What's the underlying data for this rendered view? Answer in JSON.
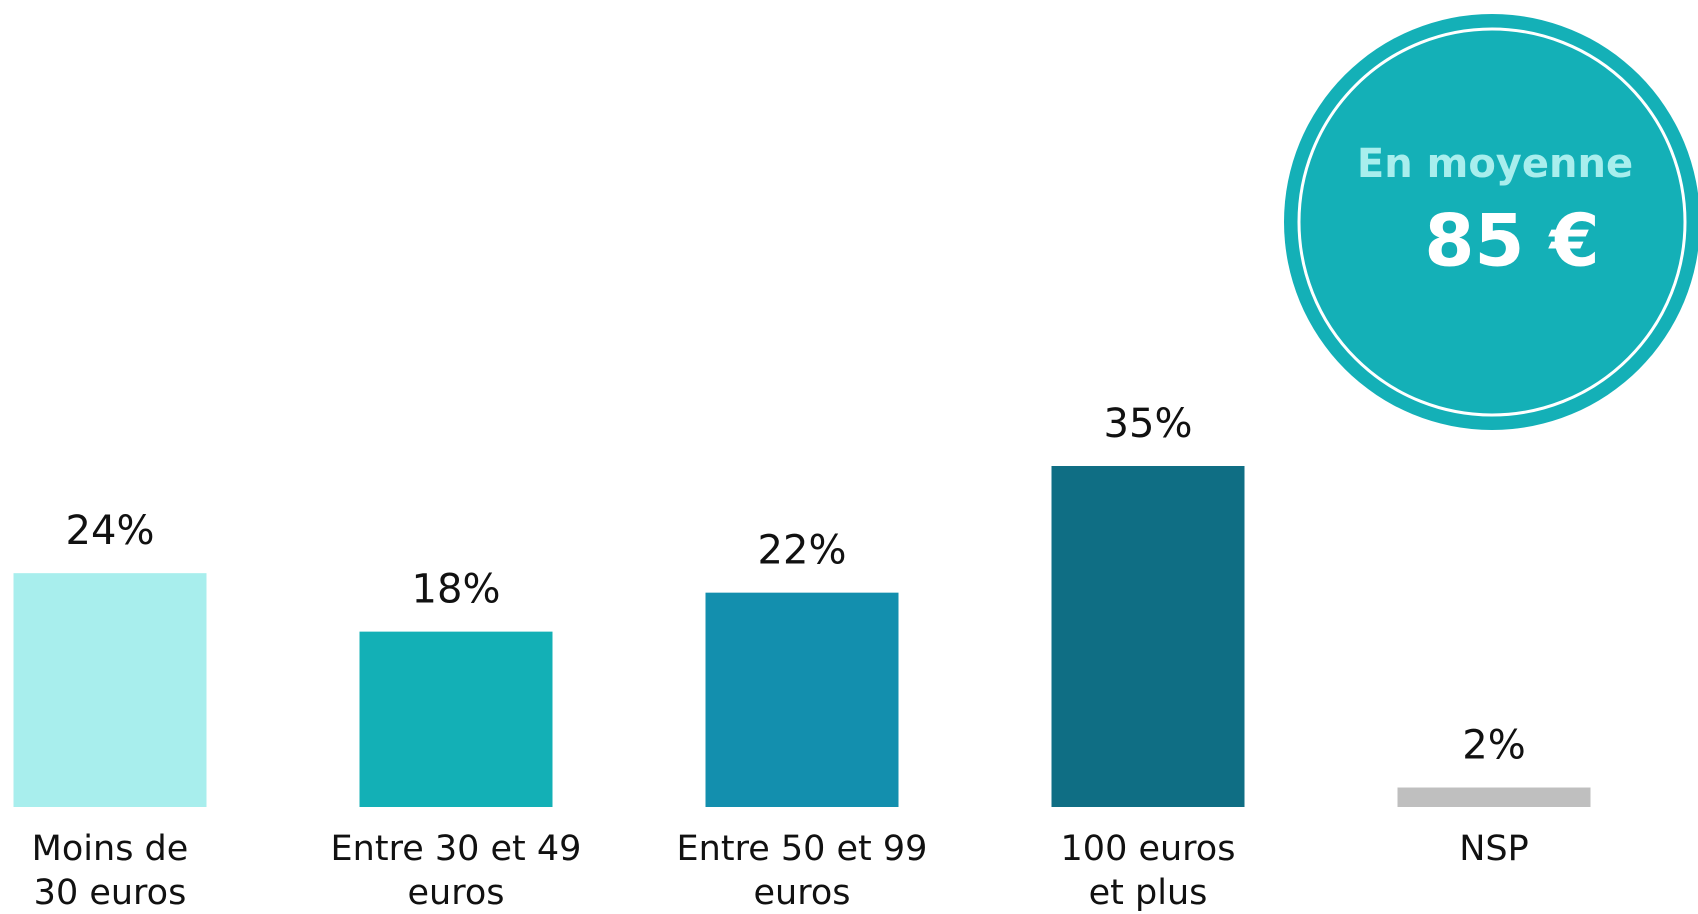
{
  "chart_data": {
    "type": "bar",
    "categories": [
      "Moins de\n30 euros",
      "Entre 30 et 49\neuros",
      "Entre 50 et 99\neuros",
      "100 euros\net plus",
      "NSP"
    ],
    "values": [
      24,
      18,
      22,
      35,
      2
    ],
    "value_labels": [
      "24%",
      "18%",
      "22%",
      "35%",
      "2%"
    ],
    "colors": [
      "#a8eeed",
      "#13b0b6",
      "#138fae",
      "#0f6e84",
      "#bfbfbf"
    ],
    "annotation": {
      "label": "En moyenne",
      "value": "85 €"
    }
  }
}
